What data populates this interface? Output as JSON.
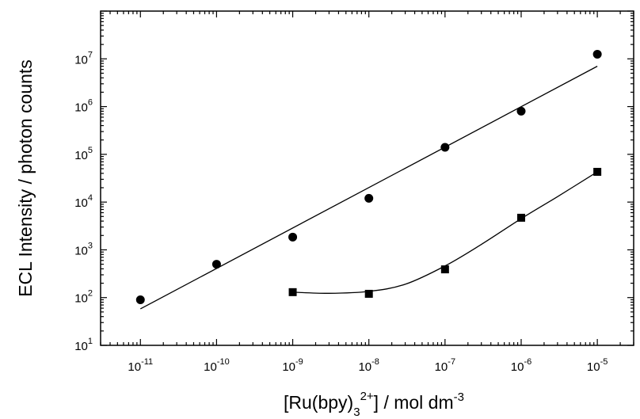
{
  "chart_data": {
    "type": "scatter",
    "title": "",
    "xlabel": {
      "prefix": "[Ru(bpy)",
      "subscript": "3",
      "superscript": "2+",
      "suffix": "] / mol dm",
      "suffix_sup": "-3"
    },
    "ylabel": "ECL Intensity / photon counts",
    "x_scale": "log",
    "y_scale": "log",
    "xlim": [
      3e-12,
      3e-05
    ],
    "ylim": [
      10,
      100000000.0
    ],
    "x_ticks": [
      1e-11,
      1e-10,
      1e-09,
      1e-08,
      1e-07,
      1e-06,
      1e-05
    ],
    "x_tick_labels": [
      {
        "base": "10",
        "exp": "-11"
      },
      {
        "base": "10",
        "exp": "-10"
      },
      {
        "base": "10",
        "exp": "-9"
      },
      {
        "base": "10",
        "exp": "-8"
      },
      {
        "base": "10",
        "exp": "-7"
      },
      {
        "base": "10",
        "exp": "-6"
      },
      {
        "base": "10",
        "exp": "-5"
      }
    ],
    "y_ticks": [
      10,
      100,
      1000,
      10000,
      100000,
      1000000,
      10000000
    ],
    "y_tick_labels": [
      {
        "base": "10",
        "exp": "1"
      },
      {
        "base": "10",
        "exp": "2"
      },
      {
        "base": "10",
        "exp": "3"
      },
      {
        "base": "10",
        "exp": "4"
      },
      {
        "base": "10",
        "exp": "5"
      },
      {
        "base": "10",
        "exp": "6"
      },
      {
        "base": "10",
        "exp": "7"
      }
    ],
    "grid": false,
    "legend": "none",
    "series": [
      {
        "marker": "circle",
        "color": "#000000",
        "points": [
          {
            "x": 1e-11,
            "y": 90
          },
          {
            "x": 1e-10,
            "y": 500
          },
          {
            "x": 1e-09,
            "y": 1850
          },
          {
            "x": 1e-08,
            "y": 12000
          },
          {
            "x": 1e-07,
            "y": 140000
          },
          {
            "x": 1e-06,
            "y": 800000
          },
          {
            "x": 1e-05,
            "y": 12500000
          }
        ],
        "fit": {
          "type": "line",
          "points": [
            {
              "x": 1e-11,
              "y": 58
            },
            {
              "x": 1e-05,
              "y": 7000000
            }
          ]
        }
      },
      {
        "marker": "square",
        "color": "#000000",
        "points": [
          {
            "x": 1e-09,
            "y": 130
          },
          {
            "x": 1e-08,
            "y": 120
          },
          {
            "x": 1e-07,
            "y": 390
          },
          {
            "x": 1e-06,
            "y": 4700
          },
          {
            "x": 1e-05,
            "y": 43000
          }
        ],
        "fit": {
          "type": "curve",
          "points": [
            {
              "x": 1e-09,
              "y": 130
            },
            {
              "x": 3e-09,
              "y": 123
            },
            {
              "x": 1e-08,
              "y": 135
            },
            {
              "x": 3e-08,
              "y": 190
            },
            {
              "x": 1e-07,
              "y": 460
            },
            {
              "x": 3e-07,
              "y": 1300
            },
            {
              "x": 1e-06,
              "y": 4500
            },
            {
              "x": 3e-06,
              "y": 13000
            },
            {
              "x": 1e-05,
              "y": 43000
            }
          ]
        }
      }
    ]
  }
}
